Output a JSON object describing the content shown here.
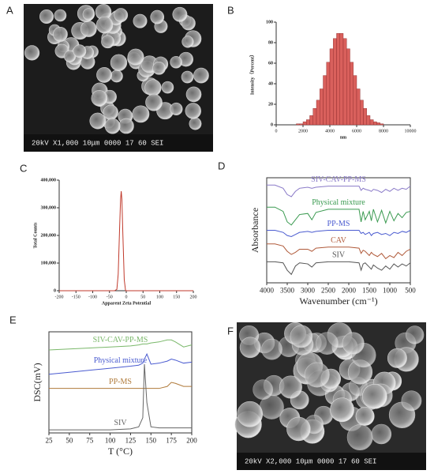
{
  "images": [
    {
      "panel_label": "A",
      "caption": "20kV  X1,000  10μm  0000 17 60 SEI"
    },
    {
      "panel_label": "F",
      "caption": "20kV  X2,000  10μm  0000 17 60 SEI"
    }
  ],
  "chart_data": [
    {
      "type": "histogram",
      "panel_label": "B",
      "ylabel": "Intensity（Percent）",
      "xlabel": "nm",
      "color": "#d9605c",
      "bins": [
        1500,
        1750,
        2000,
        2250,
        2500,
        2750,
        3000,
        3250,
        3500,
        3750,
        4000,
        4250,
        4500,
        4750,
        5000,
        5250,
        5500,
        5750,
        6000,
        6250,
        6500,
        6750,
        7000,
        7250,
        7500,
        7750,
        8000
      ],
      "counts": [
        1,
        1,
        3,
        5,
        9,
        16,
        24,
        35,
        48,
        61,
        74,
        84,
        89,
        89,
        84,
        74,
        61,
        48,
        35,
        24,
        16,
        9,
        5,
        3,
        2,
        1
      ],
      "xlim": [
        0,
        10000
      ],
      "xticks": [
        0,
        2000,
        4000,
        6000,
        8000,
        10000
      ],
      "ylim": [
        0,
        100
      ],
      "yticks": [
        0,
        20,
        40,
        60,
        80,
        100
      ]
    },
    {
      "type": "line",
      "panel_label": "C",
      "ylabel": "Total Counts",
      "xlabel": "Apparent Zeta Potential",
      "color": "#c0392b",
      "x": [
        -200,
        -35,
        -28,
        -24,
        -20,
        -17,
        -15,
        -13,
        -10,
        -6,
        -2,
        200
      ],
      "values": [
        0,
        0,
        5000,
        60000,
        220000,
        330000,
        360000,
        330000,
        200000,
        40000,
        0,
        0
      ],
      "xlim": [
        -200,
        200
      ],
      "xticks": [
        -200,
        -150,
        -100,
        -50,
        0,
        50,
        100,
        150,
        200
      ],
      "ylim": [
        0,
        400000
      ],
      "yticks": [
        0,
        {
          "value": 100000,
          "label": "100,000"
        },
        {
          "value": 200000,
          "label": "200,000"
        },
        {
          "value": 300000,
          "label": "300,000"
        },
        {
          "value": 400000,
          "label": "400,000"
        }
      ]
    },
    {
      "type": "line",
      "panel_label": "D",
      "ylabel": "Absorbance",
      "xlabel": "Wavenumber (cm⁻¹)",
      "x": [
        4000,
        3800,
        3600,
        3500,
        3400,
        3300,
        3200,
        3000,
        2900,
        2800,
        2500,
        2000,
        1750,
        1700,
        1650,
        1600,
        1500,
        1450,
        1400,
        1300,
        1200,
        1100,
        1000,
        900,
        800,
        700,
        600,
        500
      ],
      "xlim": [
        4000,
        500
      ],
      "xticks": [
        4000,
        3500,
        3000,
        2500,
        2000,
        1500,
        1000,
        500
      ],
      "ylim": [
        0,
        10
      ],
      "series": [
        {
          "name": "SIV-CAV-PP-MS",
          "color": "#8a7ac8",
          "values": [
            9.3,
            9.3,
            9.0,
            8.4,
            8.2,
            8.7,
            9.0,
            9.1,
            9.0,
            9.1,
            9.2,
            9.2,
            9.2,
            8.8,
            9.0,
            8.9,
            8.8,
            8.7,
            8.9,
            8.8,
            8.6,
            8.9,
            8.7,
            9.0,
            8.8,
            9.0,
            8.9,
            9.2
          ]
        },
        {
          "name": "Physical mixture",
          "color": "#3a9a50",
          "values": [
            7.2,
            7.2,
            6.8,
            5.8,
            5.5,
            6.0,
            6.5,
            6.6,
            6.0,
            6.7,
            7.0,
            7.0,
            7.0,
            5.8,
            6.8,
            6.0,
            6.8,
            5.9,
            7.0,
            5.8,
            6.9,
            5.7,
            6.8,
            5.9,
            6.6,
            6.2,
            6.7,
            6.8
          ]
        },
        {
          "name": "PP-MS",
          "color": "#4a5bd0",
          "values": [
            5.0,
            5.0,
            4.8,
            4.5,
            4.4,
            4.6,
            4.8,
            4.9,
            4.8,
            4.9,
            5.0,
            5.0,
            5.0,
            4.7,
            4.8,
            4.6,
            4.8,
            4.5,
            4.7,
            4.8,
            4.6,
            4.7,
            4.5,
            4.8,
            4.7,
            4.9,
            4.8,
            5.0
          ]
        },
        {
          "name": "CAV",
          "color": "#b05a3a",
          "values": [
            3.7,
            3.7,
            3.5,
            3.0,
            2.7,
            2.9,
            3.2,
            3.2,
            3.0,
            3.3,
            3.4,
            3.4,
            3.3,
            2.8,
            3.1,
            3.0,
            2.6,
            2.9,
            2.7,
            2.5,
            2.8,
            2.3,
            2.6,
            2.4,
            2.9,
            2.6,
            3.0,
            3.2
          ]
        },
        {
          "name": "SIV",
          "color": "#555555",
          "values": [
            2.0,
            2.0,
            1.9,
            1.2,
            0.8,
            1.6,
            1.9,
            1.8,
            1.5,
            1.9,
            2.0,
            2.0,
            1.9,
            1.2,
            1.8,
            1.9,
            1.5,
            1.3,
            1.7,
            1.4,
            1.2,
            1.6,
            1.3,
            1.8,
            1.5,
            1.8,
            1.6,
            1.9
          ]
        }
      ]
    },
    {
      "type": "line",
      "panel_label": "E",
      "ylabel": "DSC(mV)",
      "xlabel": "T (°C)",
      "x": [
        25,
        50,
        75,
        100,
        125,
        135,
        140,
        142,
        145,
        150,
        160,
        170,
        175,
        180,
        190,
        200
      ],
      "xlim": [
        25,
        200
      ],
      "xticks": [
        25,
        50,
        75,
        100,
        125,
        150,
        175,
        200
      ],
      "ylim": [
        0,
        10
      ],
      "series": [
        {
          "name": "SIV-CAV-PP-MS",
          "color": "#7ab86a",
          "values": [
            8.2,
            8.3,
            8.4,
            8.5,
            8.6,
            8.7,
            8.8,
            8.8,
            8.8,
            8.9,
            9.0,
            9.2,
            9.2,
            9.0,
            8.5,
            8.7
          ]
        },
        {
          "name": "Physical mixture",
          "color": "#4a5bd0",
          "values": [
            5.8,
            6.0,
            6.2,
            6.4,
            6.6,
            6.7,
            6.9,
            7.3,
            7.8,
            6.8,
            6.9,
            7.1,
            7.3,
            7.2,
            6.9,
            7.0
          ]
        },
        {
          "name": "PP-MS",
          "color": "#b07a3a",
          "values": [
            4.4,
            4.4,
            4.4,
            4.4,
            4.4,
            4.4,
            4.4,
            4.4,
            4.4,
            4.4,
            4.4,
            4.6,
            5.0,
            4.9,
            4.6,
            4.6
          ]
        },
        {
          "name": "SIV",
          "color": "#666666",
          "values": [
            0.3,
            0.3,
            0.3,
            0.3,
            0.4,
            0.6,
            1.5,
            6.8,
            3.0,
            0.6,
            0.5,
            0.5,
            0.5,
            0.5,
            0.5,
            0.5
          ]
        }
      ]
    }
  ]
}
